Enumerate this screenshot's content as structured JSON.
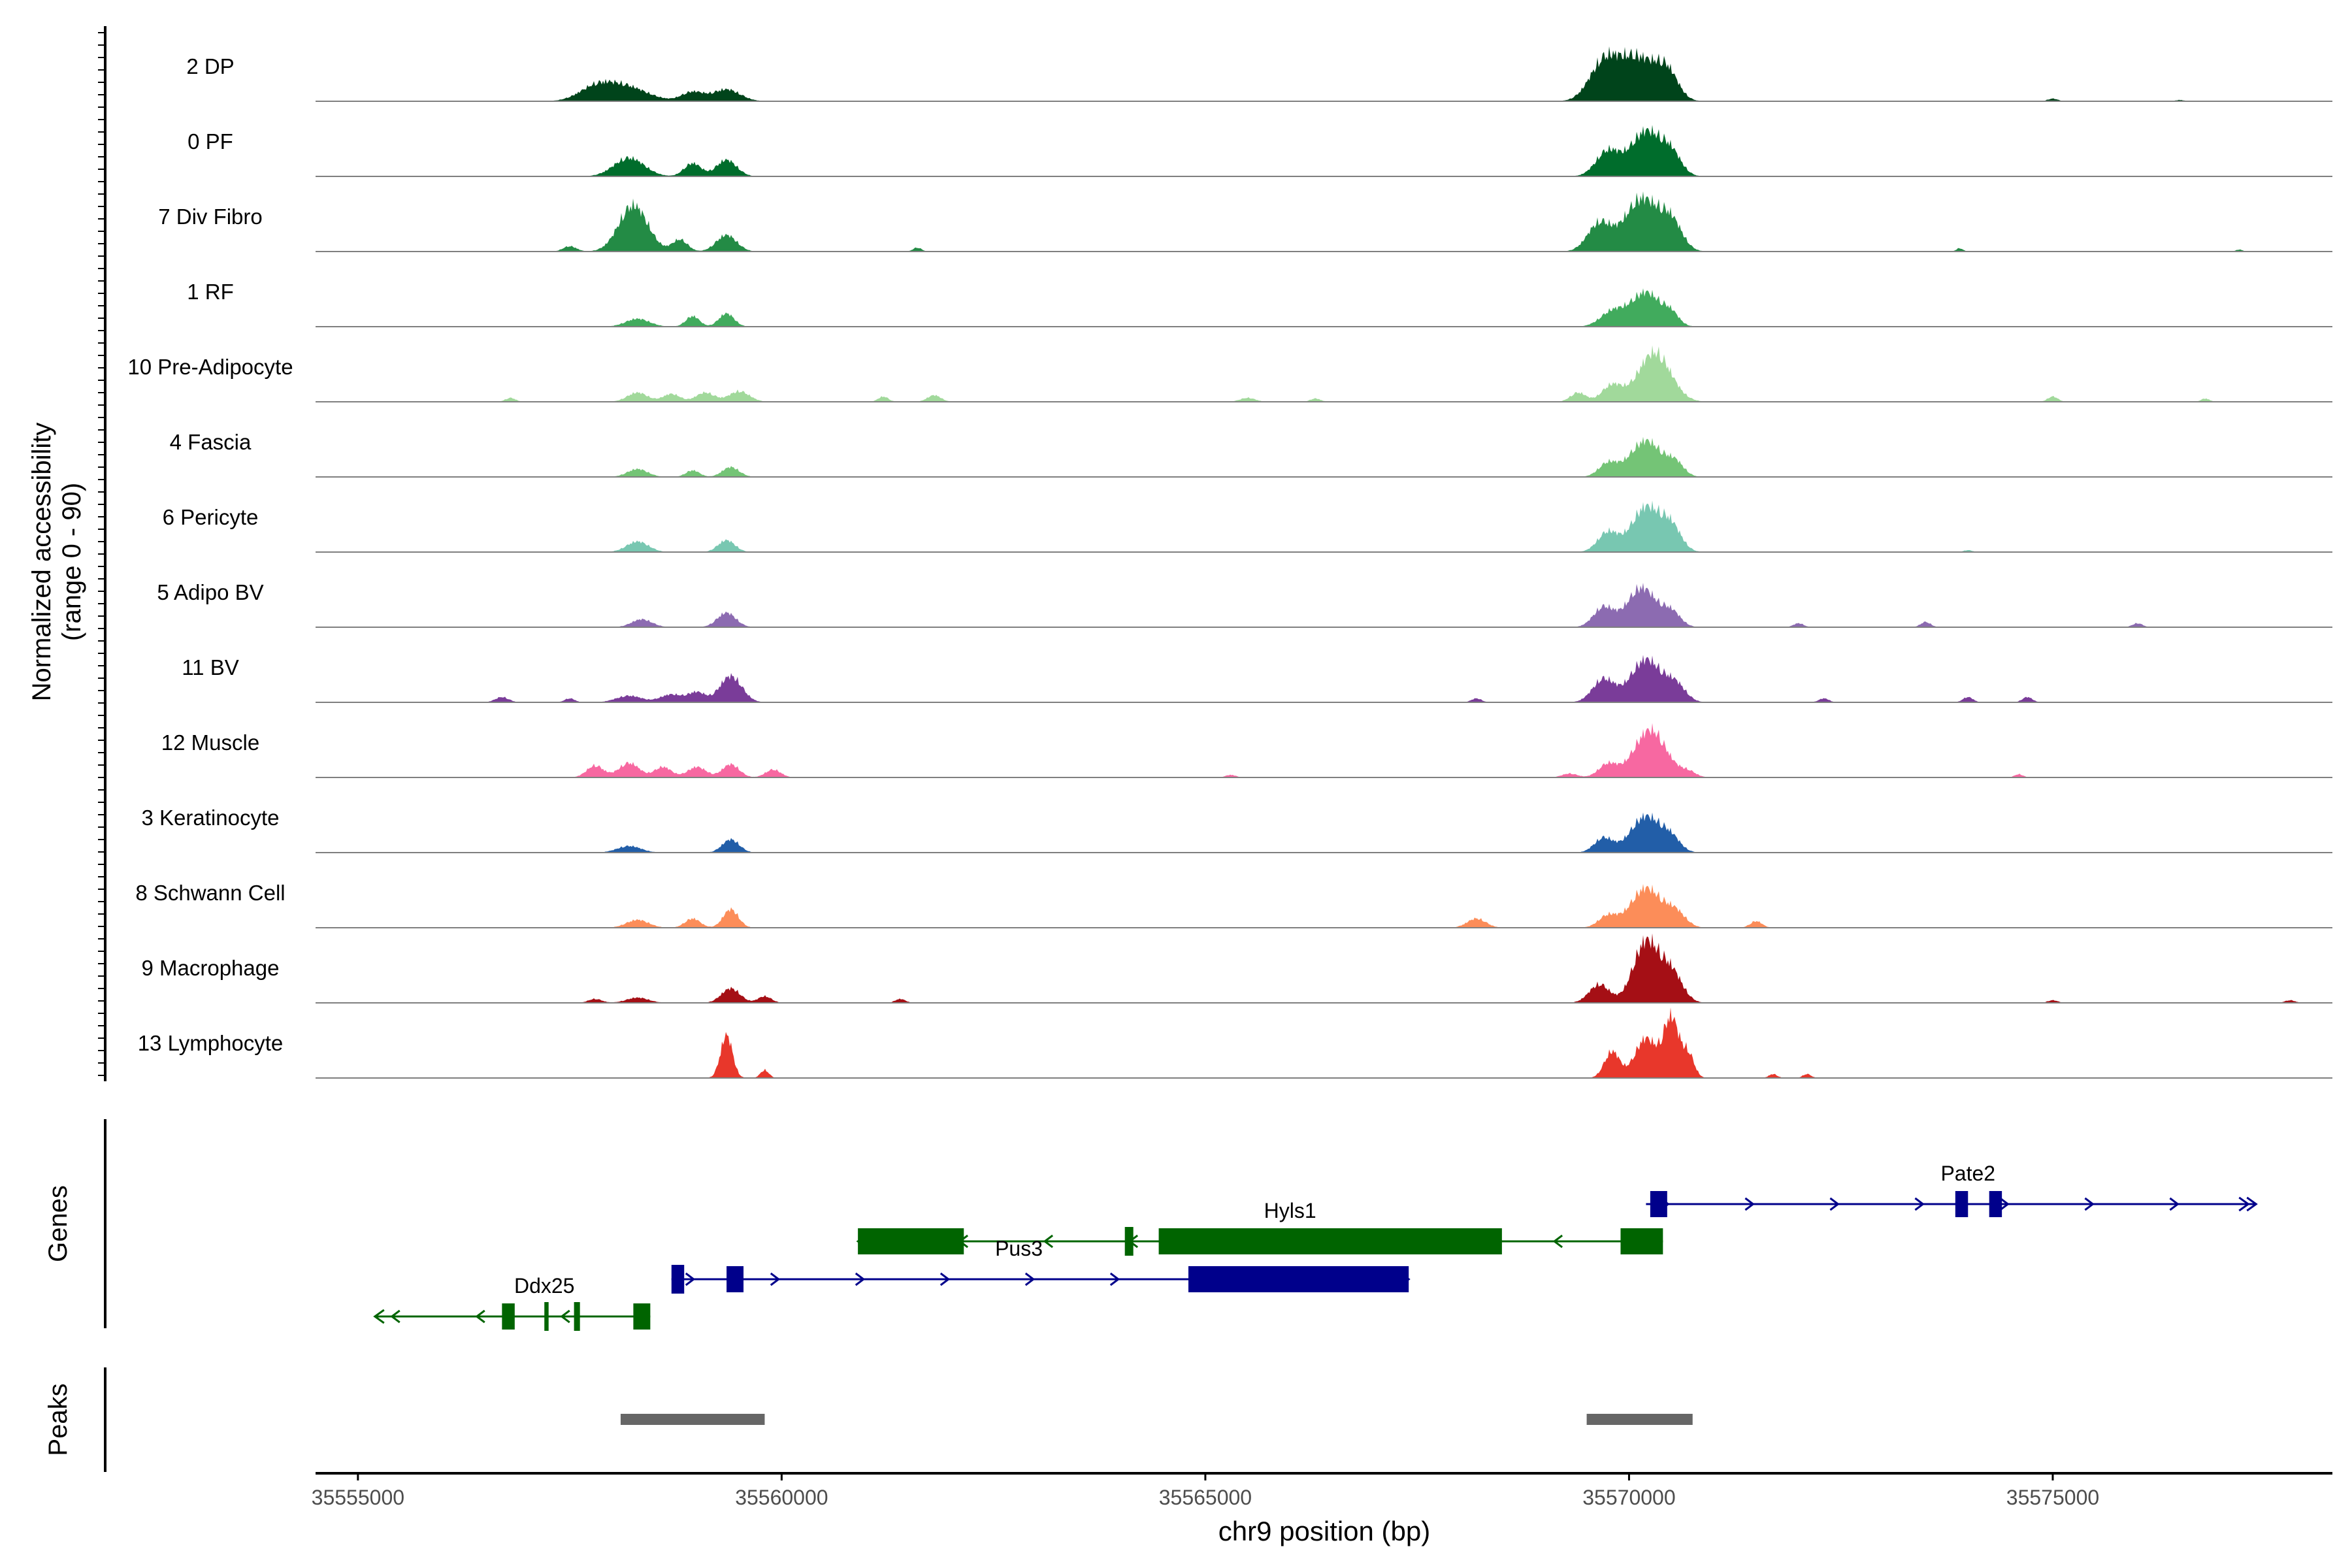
{
  "chart_data": {
    "type": "area",
    "title": "",
    "ylabel": "Normalized accessibility\n(range 0 - 90)",
    "xlabel": "chr9 position (bp)",
    "xlim": [
      35554500,
      35578300
    ],
    "ylim": [
      0,
      90
    ],
    "x_ticks": [
      35555000,
      35560000,
      35565000,
      35570000,
      35575000
    ],
    "x_tick_labels": [
      "35555000",
      "35560000",
      "35565000",
      "35570000",
      "35575000"
    ],
    "panel_labels": {
      "genes": "Genes",
      "peaks": "Peaks"
    },
    "tracks": [
      {
        "name": "2 DP",
        "color": "#00441b",
        "peaks": [
          [
            35557800,
            200,
            18
          ],
          [
            35558150,
            260,
            22
          ],
          [
            35558950,
            130,
            14
          ],
          [
            35559350,
            160,
            18
          ],
          [
            35569700,
            170,
            55
          ],
          [
            35570100,
            220,
            65
          ],
          [
            35570450,
            130,
            38
          ],
          [
            35575000,
            60,
            4
          ],
          [
            35576500,
            50,
            2
          ]
        ]
      },
      {
        "name": "0 PF",
        "color": "#006d2c",
        "peaks": [
          [
            35558200,
            180,
            28
          ],
          [
            35558950,
            100,
            20
          ],
          [
            35559350,
            120,
            25
          ],
          [
            35569750,
            140,
            38
          ],
          [
            35570200,
            180,
            68
          ],
          [
            35570500,
            120,
            30
          ]
        ]
      },
      {
        "name": "7 Div Fibro",
        "color": "#238b45",
        "peaks": [
          [
            35557500,
            80,
            8
          ],
          [
            35558250,
            170,
            70
          ],
          [
            35558800,
            90,
            18
          ],
          [
            35559350,
            120,
            25
          ],
          [
            35561600,
            50,
            6
          ],
          [
            35569650,
            140,
            42
          ],
          [
            35570150,
            200,
            80
          ],
          [
            35570500,
            130,
            40
          ],
          [
            35573900,
            40,
            5
          ],
          [
            35577200,
            40,
            3
          ]
        ]
      },
      {
        "name": "1 RF",
        "color": "#41ab5d",
        "peaks": [
          [
            35558300,
            140,
            12
          ],
          [
            35558950,
            80,
            16
          ],
          [
            35559350,
            90,
            20
          ],
          [
            35569800,
            140,
            22
          ],
          [
            35570200,
            180,
            52
          ],
          [
            35570500,
            90,
            15
          ]
        ]
      },
      {
        "name": "10 Pre-Adipocyte",
        "color": "#a1d99b",
        "peaks": [
          [
            35556800,
            60,
            6
          ],
          [
            35558300,
            120,
            14
          ],
          [
            35558700,
            100,
            12
          ],
          [
            35559100,
            110,
            14
          ],
          [
            35559500,
            120,
            16
          ],
          [
            35561200,
            60,
            8
          ],
          [
            35561800,
            80,
            10
          ],
          [
            35565500,
            90,
            6
          ],
          [
            35566300,
            60,
            5
          ],
          [
            35569400,
            90,
            14
          ],
          [
            35569800,
            120,
            25
          ],
          [
            35570300,
            190,
            75
          ],
          [
            35575000,
            60,
            8
          ],
          [
            35576800,
            50,
            5
          ]
        ]
      },
      {
        "name": "4 Fascia",
        "color": "#74c476",
        "peaks": [
          [
            35558300,
            120,
            12
          ],
          [
            35558950,
            80,
            10
          ],
          [
            35559400,
            100,
            15
          ],
          [
            35569750,
            110,
            20
          ],
          [
            35570200,
            190,
            55
          ],
          [
            35570550,
            100,
            18
          ]
        ]
      },
      {
        "name": "6 Pericyte",
        "color": "#78c7b1",
        "peaks": [
          [
            35558300,
            130,
            16
          ],
          [
            35559350,
            100,
            18
          ],
          [
            35569750,
            120,
            30
          ],
          [
            35570200,
            170,
            68
          ],
          [
            35570500,
            120,
            35
          ],
          [
            35574000,
            50,
            3
          ]
        ]
      },
      {
        "name": "5 Adipo BV",
        "color": "#8c6bb1",
        "peaks": [
          [
            35558350,
            120,
            12
          ],
          [
            35559350,
            110,
            22
          ],
          [
            35569700,
            120,
            30
          ],
          [
            35570150,
            170,
            60
          ],
          [
            35570500,
            110,
            22
          ],
          [
            35572000,
            60,
            6
          ],
          [
            35573500,
            60,
            8
          ],
          [
            35576000,
            60,
            6
          ]
        ]
      },
      {
        "name": "11 BV",
        "color": "#7a3c99",
        "peaks": [
          [
            35556700,
            80,
            8
          ],
          [
            35557500,
            60,
            6
          ],
          [
            35558200,
            150,
            10
          ],
          [
            35558700,
            130,
            12
          ],
          [
            35559000,
            100,
            15
          ],
          [
            35559400,
            130,
            40
          ],
          [
            35568200,
            60,
            6
          ],
          [
            35569700,
            130,
            35
          ],
          [
            35570200,
            180,
            65
          ],
          [
            35570550,
            120,
            25
          ],
          [
            35572300,
            60,
            6
          ],
          [
            35574000,
            60,
            8
          ],
          [
            35574700,
            60,
            8
          ]
        ]
      },
      {
        "name": "12 Muscle",
        "color": "#f768a1",
        "peaks": [
          [
            35557800,
            100,
            18
          ],
          [
            35558200,
            120,
            22
          ],
          [
            35558600,
            100,
            16
          ],
          [
            35559000,
            110,
            16
          ],
          [
            35559400,
            100,
            20
          ],
          [
            35559900,
            90,
            12
          ],
          [
            35565300,
            60,
            4
          ],
          [
            35569300,
            90,
            6
          ],
          [
            35569750,
            110,
            20
          ],
          [
            35570250,
            190,
            72
          ],
          [
            35570700,
            90,
            8
          ],
          [
            35574600,
            50,
            5
          ]
        ]
      },
      {
        "name": "3 Keratinocyte",
        "color": "#225ea8",
        "peaks": [
          [
            35558200,
            140,
            10
          ],
          [
            35559400,
            100,
            20
          ],
          [
            35569700,
            110,
            22
          ],
          [
            35570200,
            180,
            55
          ],
          [
            35570500,
            110,
            18
          ]
        ]
      },
      {
        "name": "8 Schwann Cell",
        "color": "#fc8d59",
        "peaks": [
          [
            35558300,
            130,
            12
          ],
          [
            35558950,
            90,
            14
          ],
          [
            35559400,
            90,
            28
          ],
          [
            35568200,
            110,
            14
          ],
          [
            35569750,
            110,
            18
          ],
          [
            35570200,
            180,
            60
          ],
          [
            35570550,
            120,
            22
          ],
          [
            35571500,
            70,
            10
          ]
        ]
      },
      {
        "name": "9 Macrophage",
        "color": "#a50f15",
        "peaks": [
          [
            35557800,
            80,
            6
          ],
          [
            35558300,
            130,
            8
          ],
          [
            35559400,
            110,
            22
          ],
          [
            35559800,
            80,
            10
          ],
          [
            35561400,
            60,
            6
          ],
          [
            35569650,
            120,
            28
          ],
          [
            35570200,
            150,
            92
          ],
          [
            35570500,
            130,
            45
          ],
          [
            35575000,
            60,
            4
          ],
          [
            35577800,
            60,
            4
          ]
        ]
      },
      {
        "name": "13 Lymphocyte",
        "color": "#e8372b",
        "peaks": [
          [
            35559350,
            70,
            65
          ],
          [
            35559800,
            50,
            12
          ],
          [
            35569800,
            90,
            40
          ],
          [
            35570200,
            130,
            60
          ],
          [
            35570500,
            90,
            90
          ],
          [
            35570700,
            70,
            35
          ],
          [
            35571700,
            50,
            6
          ],
          [
            35572100,
            50,
            6
          ]
        ]
      }
    ],
    "genes": [
      {
        "name": "Hyls1",
        "strand": "-",
        "color": "#006400",
        "row": 1,
        "start": 35560900,
        "end": 35570400,
        "exons": [
          [
            35560900,
            35562150,
            "utr"
          ],
          [
            35564050,
            35564150,
            "cds"
          ],
          [
            35564450,
            35568500,
            "utr"
          ],
          [
            35569900,
            35570400,
            "utr"
          ]
        ],
        "label_pos": 35566000
      },
      {
        "name": "Pus3",
        "strand": "+",
        "color": "#00008b",
        "row": 2,
        "start": 35558700,
        "end": 35567400,
        "exons": [
          [
            35558700,
            35558850,
            "cds"
          ],
          [
            35559350,
            35559550,
            "utr"
          ],
          [
            35564800,
            35567400,
            "utr"
          ]
        ],
        "label_pos": 35562800
      },
      {
        "name": "Ddx25",
        "strand": "-",
        "color": "#006400",
        "row": 3,
        "start": 35555200,
        "end": 35558450,
        "exons": [
          [
            35556700,
            35556850,
            "utr"
          ],
          [
            35557200,
            35557250,
            "cds"
          ],
          [
            35557550,
            35557620,
            "cds"
          ],
          [
            35558250,
            35558450,
            "utr"
          ]
        ],
        "label_pos": 35557200
      },
      {
        "name": "Pate2",
        "strand": "+",
        "color": "#00008b",
        "row": 0,
        "start": 35570200,
        "end": 35577400,
        "exons": [
          [
            35570250,
            35570450,
            "utr"
          ],
          [
            35573850,
            35574000,
            "utr"
          ],
          [
            35574250,
            35574400,
            "utr"
          ]
        ],
        "label_pos": 35574000
      }
    ],
    "peaks_track": [
      [
        35558100,
        35559800
      ],
      [
        35569500,
        35570750
      ]
    ]
  }
}
